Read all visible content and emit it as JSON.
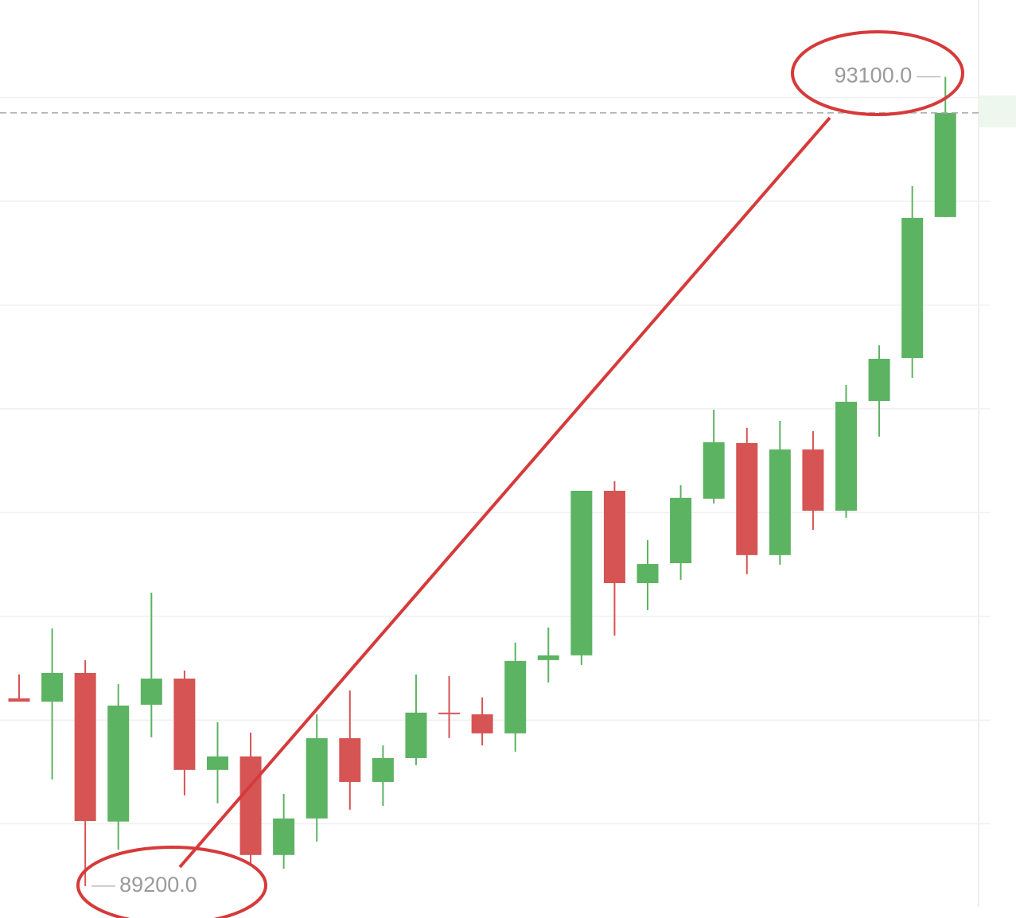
{
  "chart_data": {
    "type": "candlestick",
    "open": [
      90105,
      90089,
      90227,
      89511,
      90074,
      90200,
      89760,
      89825,
      89350,
      89526,
      89913,
      89702,
      89817,
      90036,
      90028,
      89936,
      90289,
      90312,
      91105,
      90660,
      90756,
      91067,
      91335,
      90795,
      91304,
      91009,
      91538,
      91745,
      92424
    ],
    "high": [
      90220,
      90442,
      90289,
      90174,
      90614,
      90239,
      89990,
      89940,
      89645,
      90028,
      90143,
      89878,
      90220,
      90212,
      90109,
      90373,
      90446,
      91105,
      91151,
      90867,
      91132,
      91496,
      91408,
      91442,
      91393,
      91615,
      91806,
      92573,
      93100
    ],
    "low": [
      90089,
      89714,
      89200,
      89376,
      89917,
      89637,
      89599,
      89311,
      89284,
      89415,
      89568,
      89587,
      89783,
      89913,
      89878,
      89848,
      90181,
      90266,
      90407,
      90530,
      90676,
      91044,
      90703,
      90749,
      90917,
      90975,
      91366,
      91649,
      92424
    ],
    "close": [
      90089,
      90227,
      89514,
      90070,
      90200,
      89760,
      89825,
      89350,
      89526,
      89913,
      89702,
      89817,
      90036,
      90032,
      89936,
      90285,
      90312,
      91105,
      90660,
      90752,
      91071,
      91339,
      90795,
      91304,
      91009,
      91534,
      91741,
      92420,
      92926
    ],
    "up_color": "#5cb362",
    "down_color": "#d65454",
    "ylim": [
      89100,
      93470
    ],
    "yticks": [
      89500,
      90000,
      90500,
      91000,
      91500,
      92000,
      92500,
      93000
    ],
    "grid": true,
    "annotations": [
      {
        "value": 93100,
        "label": "93100.0"
      },
      {
        "value": 89200,
        "label": "89200.0"
      }
    ]
  }
}
